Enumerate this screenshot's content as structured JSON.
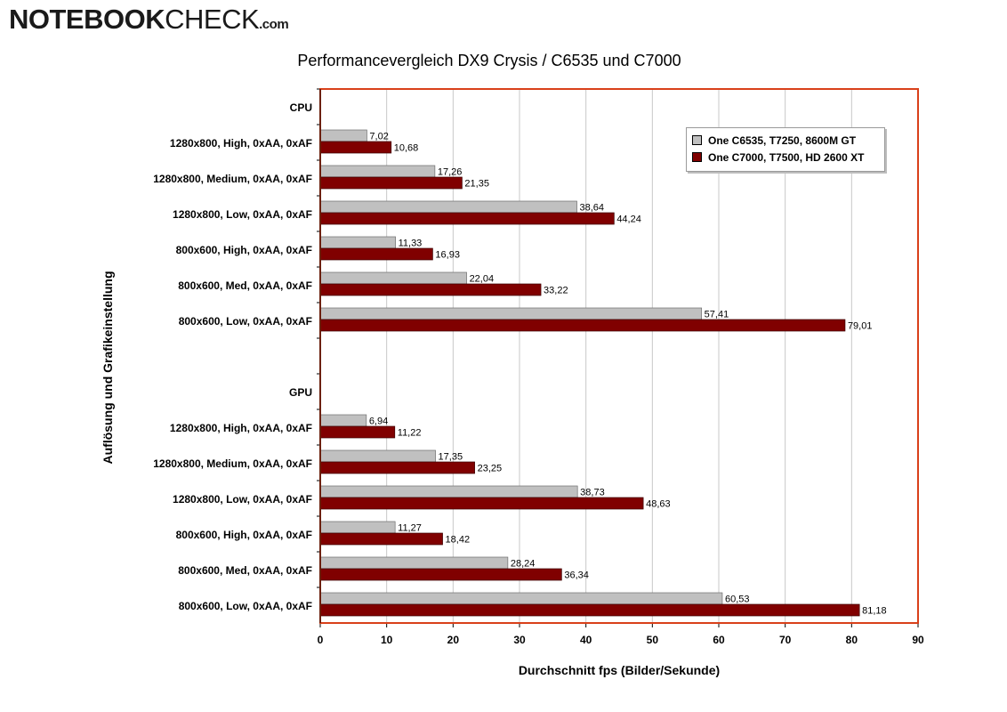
{
  "logo": {
    "part1": "NOTEBOOK",
    "part2": "CHECK",
    "part3": ".com"
  },
  "chart_data": {
    "type": "bar",
    "orientation": "horizontal",
    "title": "Performancevergleich DX9 Crysis / C6535 und C7000",
    "xlabel": "Durchschnitt fps (Bilder/Sekunde)",
    "ylabel": "Auflösung und Grafikeinstellung",
    "xlim": [
      0,
      90
    ],
    "xticks": [
      0,
      10,
      20,
      30,
      40,
      50,
      60,
      70,
      80,
      90
    ],
    "grid": "vertical",
    "legend_position": "top-right",
    "categories": [
      "CPU",
      "1280x800, High, 0xAA, 0xAF",
      "1280x800, Medium, 0xAA, 0xAF",
      "1280x800, Low, 0xAA, 0xAF",
      "800x600, High, 0xAA, 0xAF",
      "800x600, Med, 0xAA, 0xAF",
      "800x600, Low, 0xAA, 0xAF",
      "",
      "GPU",
      "1280x800, High, 0xAA, 0xAF",
      "1280x800, Medium, 0xAA, 0xAF",
      "1280x800, Low, 0xAA, 0xAF",
      "800x600, High, 0xAA, 0xAF",
      "800x600, Med, 0xAA, 0xAF",
      "800x600, Low, 0xAA, 0xAF"
    ],
    "series": [
      {
        "name": "One C6535, T7250, 8600M GT",
        "color": "#c0c0c0",
        "values": [
          null,
          7.02,
          17.26,
          38.64,
          11.33,
          22.04,
          57.41,
          null,
          null,
          6.94,
          17.35,
          38.73,
          11.27,
          28.24,
          60.53
        ],
        "labels": [
          null,
          "7,02",
          "17,26",
          "38,64",
          "11,33",
          "22,04",
          "57,41",
          null,
          null,
          "6,94",
          "17,35",
          "38,73",
          "11,27",
          "28,24",
          "60,53"
        ]
      },
      {
        "name": "One C7000, T7500, HD 2600 XT",
        "color": "#800000",
        "values": [
          null,
          10.68,
          21.35,
          44.24,
          16.93,
          33.22,
          79.01,
          null,
          null,
          11.22,
          23.25,
          48.63,
          18.42,
          36.34,
          81.18
        ],
        "labels": [
          null,
          "10,68",
          "21,35",
          "44,24",
          "16,93",
          "33,22",
          "79,01",
          null,
          null,
          "11,22",
          "23,25",
          "48,63",
          "18,42",
          "36,34",
          "81,18"
        ]
      }
    ]
  }
}
